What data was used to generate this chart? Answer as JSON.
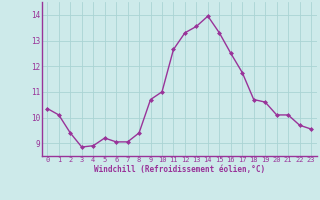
{
  "x": [
    0,
    1,
    2,
    3,
    4,
    5,
    6,
    7,
    8,
    9,
    10,
    11,
    12,
    13,
    14,
    15,
    16,
    17,
    18,
    19,
    20,
    21,
    22,
    23
  ],
  "y": [
    10.35,
    10.1,
    9.4,
    8.85,
    8.9,
    9.2,
    9.05,
    9.05,
    9.4,
    10.7,
    11.0,
    12.65,
    13.3,
    13.55,
    13.95,
    13.3,
    12.5,
    11.75,
    10.7,
    10.6,
    10.1,
    10.1,
    9.7,
    9.55
  ],
  "line_color": "#993399",
  "marker": "D",
  "markersize": 2.0,
  "linewidth": 1.0,
  "background_color": "#cdeaea",
  "grid_color": "#aad4d4",
  "xlabel": "Windchill (Refroidissement éolien,°C)",
  "xlabel_color": "#993399",
  "tick_color": "#993399",
  "border_color": "#993399",
  "ylim": [
    8.5,
    14.5
  ],
  "xlim": [
    -0.5,
    23.5
  ],
  "yticks": [
    9,
    10,
    11,
    12,
    13,
    14
  ],
  "xticks": [
    0,
    1,
    2,
    3,
    4,
    5,
    6,
    7,
    8,
    9,
    10,
    11,
    12,
    13,
    14,
    15,
    16,
    17,
    18,
    19,
    20,
    21,
    22,
    23
  ],
  "tick_fontsize": 5.0,
  "xlabel_fontsize": 5.5,
  "ytick_fontsize": 5.5
}
